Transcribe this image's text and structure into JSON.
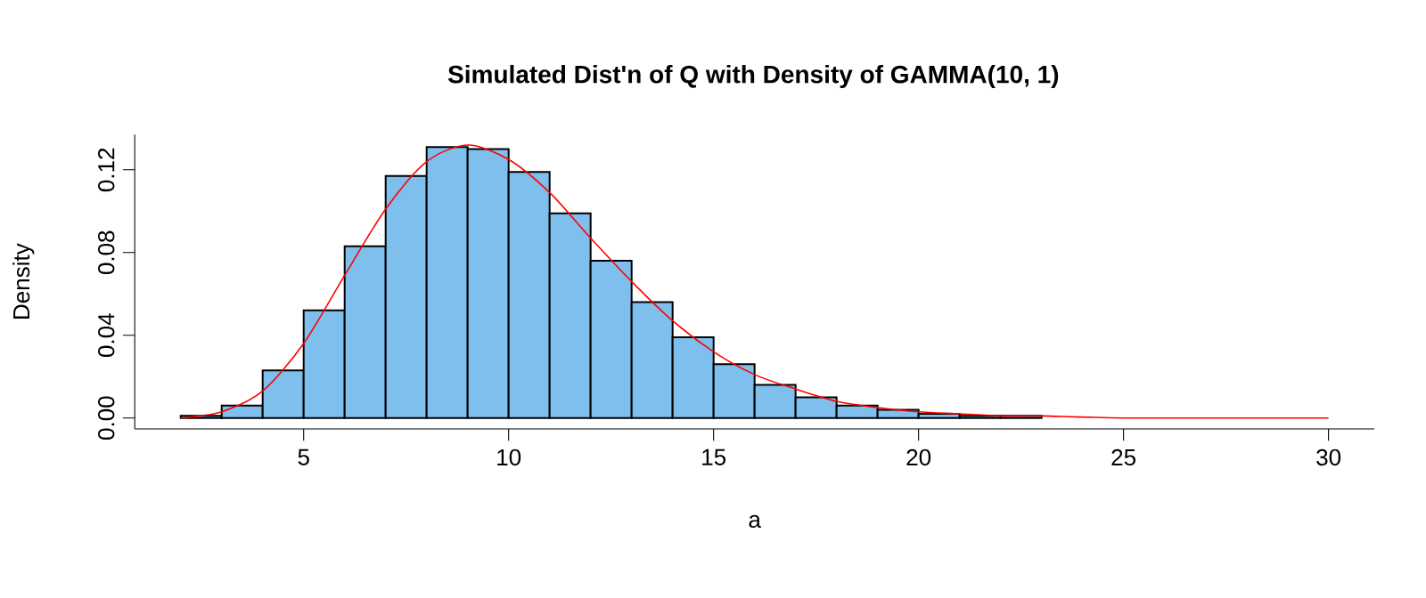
{
  "chart_data": {
    "type": "histogram",
    "title": "Simulated Dist'n of Q with Density of GAMMA(10, 1)",
    "xlabel": "a",
    "ylabel": "Density",
    "xlim": [
      0.88,
      31.12
    ],
    "ylim": [
      -0.0053,
      0.137
    ],
    "xticks": [
      5,
      10,
      15,
      20,
      25,
      30
    ],
    "yticks": [
      {
        "value": 0,
        "label": "0.00"
      },
      {
        "value": 0.04,
        "label": "0.04"
      },
      {
        "value": 0.08,
        "label": "0.08"
      },
      {
        "value": 0.12,
        "label": "0.12"
      }
    ],
    "series": [
      {
        "type": "histogram",
        "color": "#7ebfee",
        "bins": [
          2,
          3,
          4,
          5,
          6,
          7,
          8,
          9,
          10,
          11,
          12,
          13,
          14,
          15,
          16,
          17,
          18,
          19,
          20,
          21,
          22,
          23
        ],
        "values": [
          0.001,
          0.006,
          0.023,
          0.052,
          0.083,
          0.117,
          0.131,
          0.13,
          0.119,
          0.099,
          0.076,
          0.056,
          0.039,
          0.026,
          0.016,
          0.01,
          0.006,
          0.004,
          0.002,
          0.001,
          0.001
        ]
      },
      {
        "type": "line",
        "color": "#ff0000",
        "x": [
          2,
          3,
          4,
          5,
          6,
          7,
          8,
          9,
          10,
          11,
          12,
          13,
          14,
          15,
          16,
          17,
          18,
          19,
          20,
          21,
          22,
          23,
          25,
          30
        ],
        "values": [
          0,
          0.003,
          0.013,
          0.036,
          0.069,
          0.101,
          0.124,
          0.132,
          0.125,
          0.109,
          0.087,
          0.066,
          0.047,
          0.032,
          0.021,
          0.014,
          0.008,
          0.005,
          0.003,
          0.002,
          0.001,
          0.001,
          0,
          0
        ]
      }
    ]
  }
}
